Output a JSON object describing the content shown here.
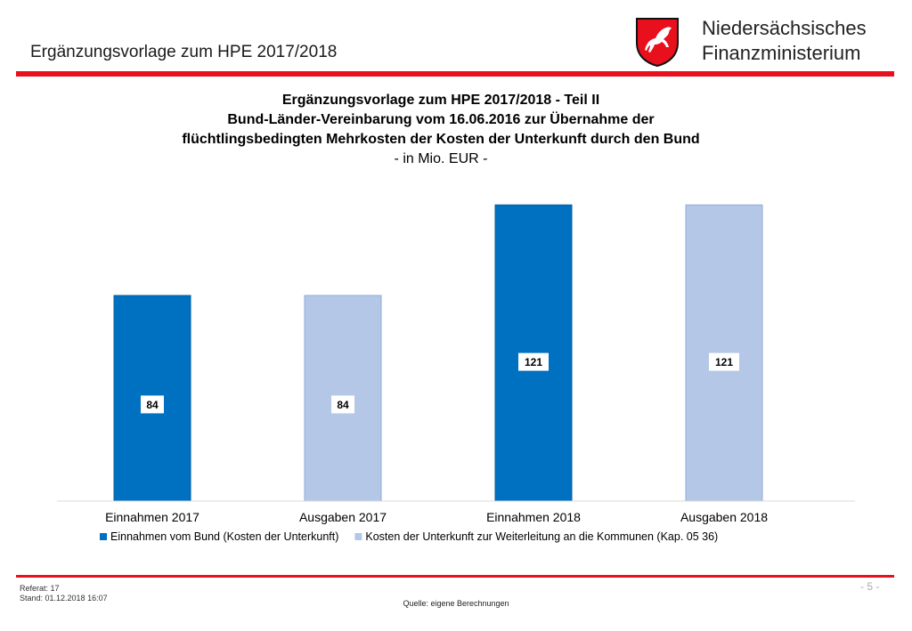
{
  "header": {
    "slide_title": "Ergänzungsvorlage zum HPE 2017/2018",
    "org_line1": "Niedersächsisches",
    "org_line2": "Finanzministerium",
    "logo_icon": "lower-saxony-horse-crest-icon"
  },
  "colors": {
    "accent_red": "#e8101d",
    "series_dark": "#0070c0",
    "series_light": "#b4c7e7"
  },
  "chart_data": {
    "type": "bar",
    "title_line1": "Ergänzungsvorlage zum HPE 2017/2018 - Teil II",
    "title_line2": "Bund-Länder-Vereinbarung vom 16.06.2016 zur Übernahme der",
    "title_line3": "flüchtlingsbedingten Mehrkosten der Kosten der Unterkunft durch den Bund",
    "unit": "- in Mio. EUR -",
    "categories": [
      "Einnahmen 2017",
      "Ausgaben 2017",
      "Einnahmen 2018",
      "Ausgaben 2018"
    ],
    "values": [
      84,
      84,
      121,
      121
    ],
    "value_labels": [
      "84",
      "84",
      "121",
      "121"
    ],
    "bar_series": [
      0,
      1,
      0,
      1
    ],
    "series": [
      {
        "name": "Einnahmen vom Bund (Kosten der Unterkunft)",
        "color": "#0070c0"
      },
      {
        "name": "Kosten der Unterkunft zur Weiterleitung an die Kommunen (Kap. 05 36)",
        "color": "#b4c7e7"
      }
    ],
    "ylim": [
      0,
      124
    ],
    "grid": false,
    "legend": "bottom"
  },
  "footer": {
    "referat": "Referat: 17",
    "stand": "Stand: 01.12.2018 16:07",
    "page": "- 5 -",
    "source": "Quelle: eigene Berechnungen"
  }
}
